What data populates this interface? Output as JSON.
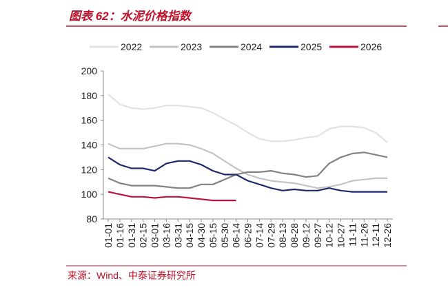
{
  "chart_data": {
    "type": "line",
    "title": "图表 62：水泥价格指数",
    "source": "来源：Wind、中泰证券研究所",
    "categories": [
      "01-01",
      "01-16",
      "01-31",
      "02-15",
      "03-01",
      "03-16",
      "03-31",
      "04-15",
      "04-30",
      "05-15",
      "05-30",
      "06-14",
      "06-29",
      "07-14",
      "07-29",
      "08-13",
      "08-28",
      "09-12",
      "09-27",
      "10-12",
      "10-27",
      "11-11",
      "11-26",
      "12-11",
      "12-26"
    ],
    "series": [
      {
        "name": "2022",
        "color": "#e2e2e2",
        "values": [
          181,
          173,
          170,
          169,
          170,
          172,
          172,
          171,
          170,
          166,
          161,
          156,
          150,
          145,
          143,
          143,
          144,
          146,
          147,
          153,
          155,
          155,
          154,
          150,
          142
        ]
      },
      {
        "name": "2023",
        "color": "#c3c3c3",
        "values": [
          141,
          137,
          137,
          137,
          139,
          141,
          141,
          140,
          137,
          133,
          127,
          121,
          116,
          113,
          111,
          110,
          109,
          107,
          105,
          106,
          108,
          111,
          112,
          113,
          113
        ]
      },
      {
        "name": "2024",
        "color": "#828282",
        "values": [
          113,
          109,
          107,
          107,
          107,
          106,
          105,
          105,
          108,
          108,
          112,
          116,
          118,
          118,
          119,
          117,
          116,
          114,
          115,
          125,
          130,
          133,
          134,
          132,
          130
        ]
      },
      {
        "name": "2025",
        "color": "#1c2a6b",
        "values": [
          130,
          124,
          121,
          121,
          119,
          125,
          127,
          127,
          124,
          119,
          116,
          116,
          111,
          108,
          105,
          103,
          104,
          103,
          103,
          105,
          103,
          102,
          102,
          102,
          102
        ]
      },
      {
        "name": "2026",
        "color": "#b8133c",
        "values": [
          102,
          100,
          98,
          98,
          97,
          98,
          98,
          97,
          96,
          95,
          95,
          95,
          null,
          null,
          null,
          null,
          null,
          null,
          null,
          null,
          null,
          null,
          null,
          null,
          null
        ]
      }
    ],
    "ylim": [
      80,
      200
    ],
    "yticks": [
      80,
      100,
      120,
      140,
      160,
      180,
      200
    ],
    "grid": false,
    "legend": "top"
  }
}
